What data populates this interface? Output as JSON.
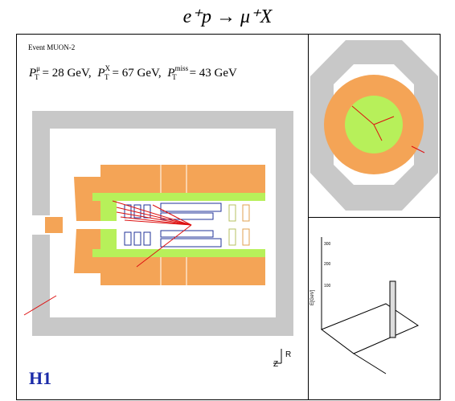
{
  "title": "e⁺p → μ⁺X",
  "event_label": "Event MUON-2",
  "momenta": [
    {
      "symbol": "P",
      "sub": "T",
      "sup": "μ",
      "value": "= 28 GeV,"
    },
    {
      "symbol": "P",
      "sub": "T",
      "sup": "X",
      "value": "= 67 GeV,"
    },
    {
      "symbol": "P",
      "sub": "T",
      "sup": "miss",
      "value": "= 43 GeV"
    }
  ],
  "logo": "H1",
  "axes": {
    "r": "R",
    "z": "Z"
  },
  "lego": {
    "y_label": "E[GeV]",
    "ticks": [
      "300",
      "200",
      "100"
    ]
  }
}
